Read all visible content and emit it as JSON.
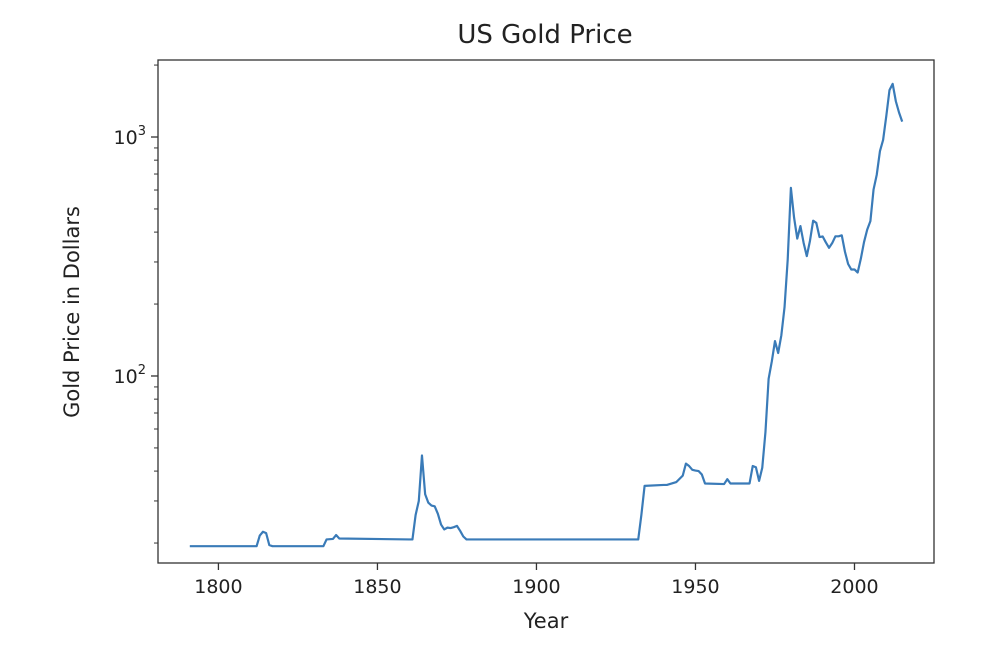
{
  "chart_data": {
    "type": "line",
    "title": "US Gold Price",
    "xlabel": "Year",
    "ylabel": "Gold Price in Dollars",
    "xlim": [
      1781,
      2025
    ],
    "ylim": [
      16.5,
      2100
    ],
    "y_scale": "log",
    "grid": false,
    "x_ticks": [
      1800,
      1850,
      1900,
      1950,
      2000
    ],
    "y_ticks": [
      {
        "value": 100,
        "base": "10",
        "exp": "2"
      },
      {
        "value": 1000,
        "base": "10",
        "exp": "3"
      }
    ],
    "line_color": "#3a7bb8",
    "series": [
      {
        "values": [
          [
            1791,
            19.4
          ],
          [
            1812,
            19.4
          ],
          [
            1813,
            21.5
          ],
          [
            1814,
            22.3
          ],
          [
            1815,
            22.0
          ],
          [
            1816,
            19.6
          ],
          [
            1817,
            19.4
          ],
          [
            1833,
            19.4
          ],
          [
            1834,
            20.7
          ],
          [
            1836,
            20.8
          ],
          [
            1837,
            21.6
          ],
          [
            1838,
            20.9
          ],
          [
            1860,
            20.7
          ],
          [
            1861,
            20.7
          ],
          [
            1862,
            26.2
          ],
          [
            1863,
            30.0
          ],
          [
            1864,
            46.5
          ],
          [
            1865,
            32.0
          ],
          [
            1866,
            29.5
          ],
          [
            1867,
            28.7
          ],
          [
            1868,
            28.5
          ],
          [
            1869,
            26.5
          ],
          [
            1870,
            23.9
          ],
          [
            1871,
            22.8
          ],
          [
            1872,
            23.2
          ],
          [
            1873,
            23.1
          ],
          [
            1874,
            23.3
          ],
          [
            1875,
            23.6
          ],
          [
            1876,
            22.5
          ],
          [
            1877,
            21.3
          ],
          [
            1878,
            20.7
          ],
          [
            1932,
            20.7
          ],
          [
            1933,
            26.3
          ],
          [
            1934,
            34.7
          ],
          [
            1940,
            35.0
          ],
          [
            1941,
            35.0
          ],
          [
            1944,
            36.0
          ],
          [
            1946,
            38.3
          ],
          [
            1947,
            43.0
          ],
          [
            1948,
            42.0
          ],
          [
            1949,
            40.5
          ],
          [
            1950,
            40.2
          ],
          [
            1951,
            40.0
          ],
          [
            1952,
            38.7
          ],
          [
            1953,
            35.5
          ],
          [
            1959,
            35.3
          ],
          [
            1960,
            37.0
          ],
          [
            1961,
            35.5
          ],
          [
            1967,
            35.5
          ],
          [
            1968,
            42.0
          ],
          [
            1969,
            41.5
          ],
          [
            1970,
            36.4
          ],
          [
            1971,
            41.3
          ],
          [
            1972,
            58.2
          ],
          [
            1973,
            97.3
          ],
          [
            1974,
            115.0
          ],
          [
            1975,
            140.0
          ],
          [
            1976,
            124.8
          ],
          [
            1977,
            148.0
          ],
          [
            1978,
            193.6
          ],
          [
            1979,
            306.7
          ],
          [
            1980,
            612.6
          ],
          [
            1981,
            460.0
          ],
          [
            1982,
            375.8
          ],
          [
            1983,
            424.0
          ],
          [
            1984,
            360.7
          ],
          [
            1985,
            317.4
          ],
          [
            1986,
            367.7
          ],
          [
            1987,
            446.5
          ],
          [
            1988,
            436.9
          ],
          [
            1989,
            381.4
          ],
          [
            1990,
            383.5
          ],
          [
            1991,
            362.1
          ],
          [
            1992,
            343.8
          ],
          [
            1993,
            360.0
          ],
          [
            1994,
            384.2
          ],
          [
            1995,
            384.2
          ],
          [
            1996,
            387.8
          ],
          [
            1997,
            331.0
          ],
          [
            1998,
            294.2
          ],
          [
            1999,
            278.9
          ],
          [
            2000,
            279.1
          ],
          [
            2001,
            271.0
          ],
          [
            2002,
            309.7
          ],
          [
            2003,
            363.4
          ],
          [
            2004,
            409.7
          ],
          [
            2005,
            444.7
          ],
          [
            2006,
            603.5
          ],
          [
            2007,
            695.4
          ],
          [
            2008,
            871.96
          ],
          [
            2009,
            972.35
          ],
          [
            2010,
            1224.5
          ],
          [
            2011,
            1571.5
          ],
          [
            2012,
            1668.9
          ],
          [
            2013,
            1411.2
          ],
          [
            2014,
            1266.4
          ],
          [
            2015,
            1160.1
          ]
        ]
      }
    ]
  }
}
